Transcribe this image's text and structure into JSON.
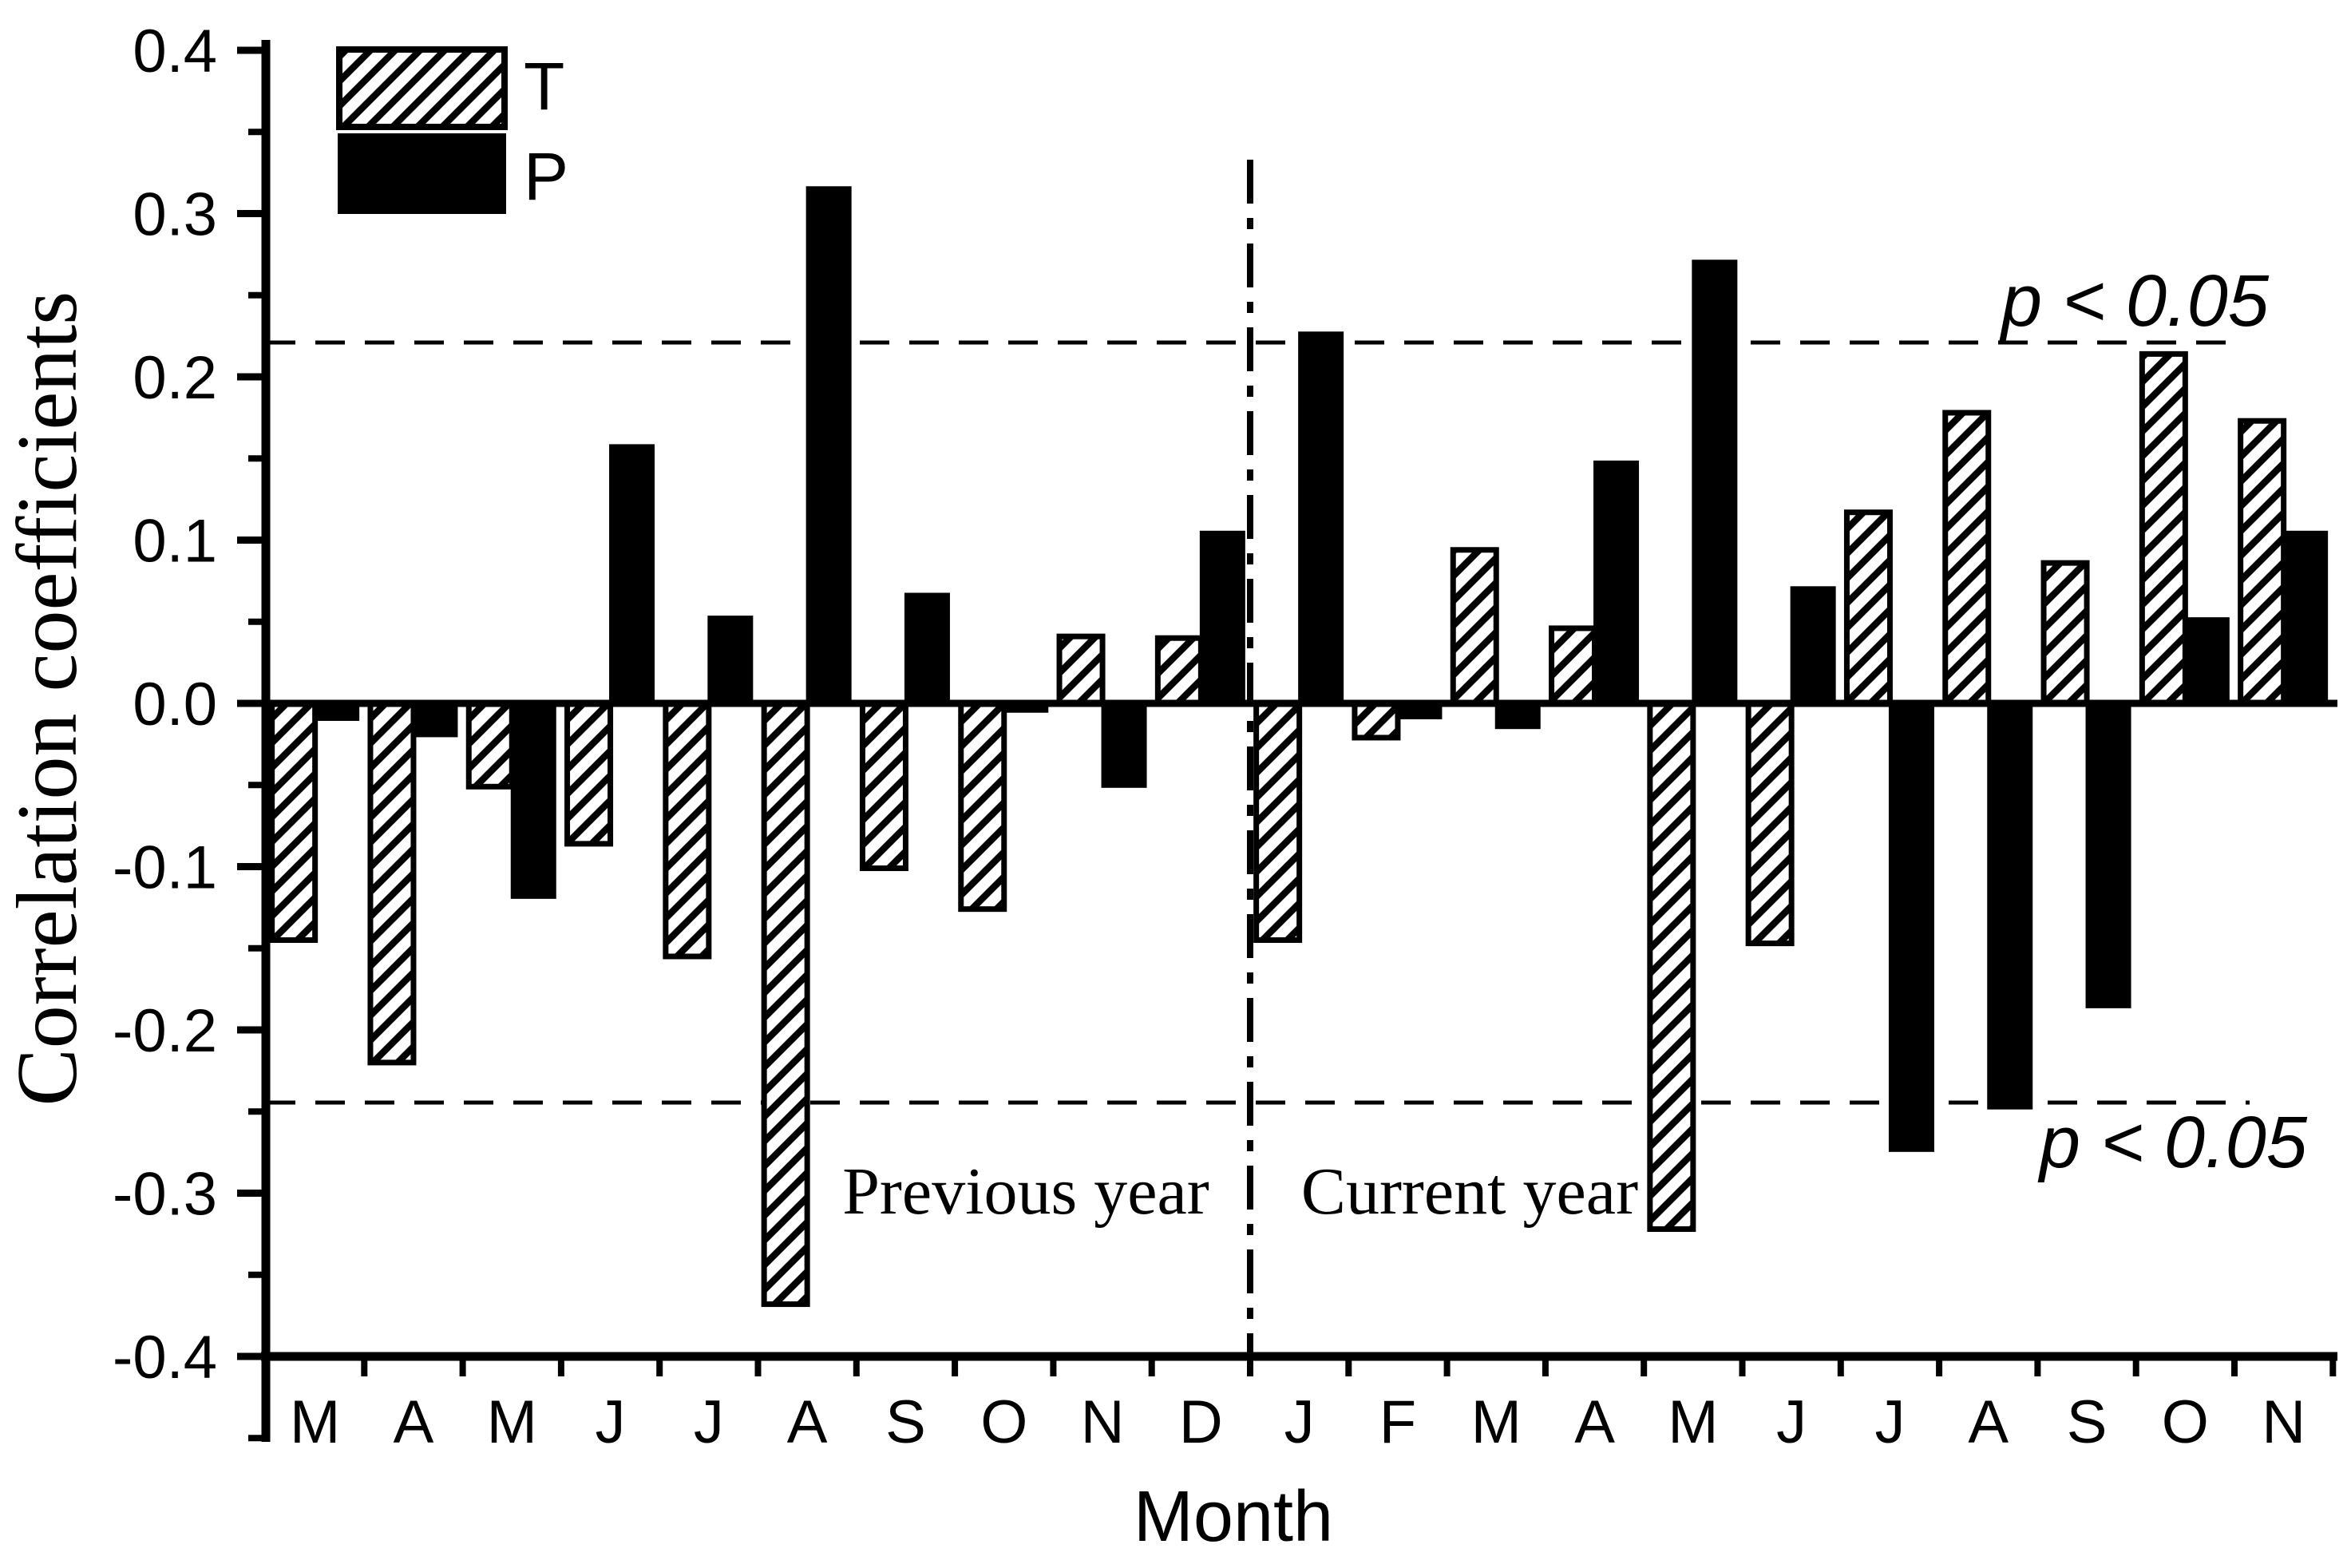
{
  "figure": {
    "background_color": "#ffffff",
    "ink_color": "#000000"
  },
  "legend": {
    "items": [
      {
        "label": "T",
        "swatch": "diagonal-hatch"
      },
      {
        "label": "P",
        "swatch": "solid-black"
      }
    ]
  },
  "y_axis": {
    "title": "Correlation coefficients",
    "tick_labels": [
      "0.4",
      "0.3",
      "0.2",
      "0.1",
      "0.0",
      "-0.1",
      "-0.2",
      "-0.3",
      "-0.4"
    ],
    "tick_values": [
      0.4,
      0.3,
      0.2,
      0.1,
      0.0,
      -0.1,
      -0.2,
      -0.3,
      -0.4
    ],
    "minor_tick_values": [
      0.35,
      0.25,
      0.15,
      0.05,
      -0.05,
      -0.15,
      -0.25,
      -0.35,
      -0.45
    ],
    "range": [
      -0.4,
      0.4
    ]
  },
  "x_axis": {
    "title": "Month",
    "labels": [
      "M",
      "A",
      "M",
      "J",
      "J",
      "A",
      "S",
      "O",
      "N",
      "D",
      "J",
      "F",
      "M",
      "A",
      "M",
      "J",
      "J",
      "A",
      "S",
      "O",
      "N"
    ]
  },
  "annotations": {
    "previous_year": "Previous year",
    "current_year": "Current year",
    "p_upper": "p < 0.05",
    "p_lower": "p < 0.05"
  },
  "chart_data": {
    "type": "bar",
    "title": "",
    "xlabel": "Month",
    "ylabel": "Correlation coefficients",
    "ylim": [
      -0.4,
      0.4
    ],
    "grid": false,
    "legend_position": "top-left-inside",
    "categories": [
      "M",
      "A",
      "M",
      "J",
      "J",
      "A",
      "S",
      "O",
      "N",
      "D",
      "J",
      "F",
      "M",
      "A",
      "M",
      "J",
      "J",
      "A",
      "S",
      "O",
      "N"
    ],
    "year_groups": [
      {
        "label": "Previous year",
        "category_indices": [
          0,
          9
        ]
      },
      {
        "label": "Current year",
        "category_indices": [
          10,
          20
        ]
      }
    ],
    "separator_after_index": 9,
    "series": [
      {
        "name": "T",
        "style": "white fill with black diagonal hatch, black outline",
        "values": [
          -0.145,
          -0.22,
          -0.051,
          -0.086,
          -0.155,
          -0.368,
          -0.101,
          -0.126,
          0.041,
          0.04,
          -0.145,
          -0.021,
          0.094,
          0.046,
          -0.322,
          -0.147,
          0.117,
          0.178,
          0.086,
          0.214,
          0.173
        ]
      },
      {
        "name": "P",
        "style": "solid black fill",
        "values": [
          -0.01,
          -0.02,
          -0.119,
          0.158,
          0.053,
          0.316,
          0.067,
          -0.005,
          -0.051,
          0.105,
          0.227,
          -0.009,
          -0.015,
          0.148,
          0.271,
          0.071,
          -0.274,
          -0.248,
          -0.186,
          0.052,
          0.105
        ]
      }
    ],
    "significance_lines": {
      "style": "horizontal dashed",
      "upper_value": 0.221,
      "lower_value": -0.244,
      "label": "p < 0.05"
    }
  }
}
